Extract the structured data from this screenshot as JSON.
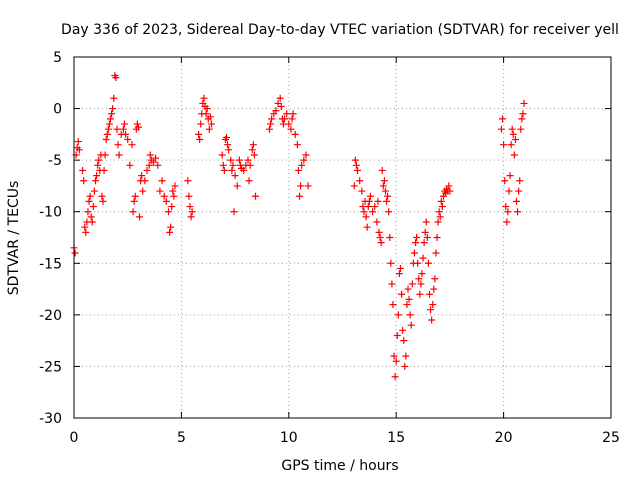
{
  "chart_data": {
    "type": "scatter",
    "title": "Day 336 of 2023, Sidereal Day-to-day VTEC variation (SDTVAR) for receiver yell",
    "xlabel": "GPS time / hours",
    "ylabel": "SDTVAR / TECUs",
    "xlim": [
      0,
      25
    ],
    "ylim": [
      -30,
      5
    ],
    "xticks": [
      0,
      5,
      10,
      15,
      20,
      25
    ],
    "yticks": [
      -30,
      -25,
      -20,
      -15,
      -10,
      -5,
      0,
      5
    ],
    "grid": true,
    "marker": "+",
    "color": "#ff0000",
    "series": [
      {
        "name": "SDTVAR",
        "points": [
          [
            0.0,
            -13.5
          ],
          [
            0.05,
            -14.0
          ],
          [
            0.1,
            -4.5
          ],
          [
            0.15,
            -3.8
          ],
          [
            0.2,
            -3.2
          ],
          [
            0.25,
            -4.0
          ],
          [
            0.4,
            -6.0
          ],
          [
            0.45,
            -7.0
          ],
          [
            0.5,
            -11.5
          ],
          [
            0.55,
            -12.0
          ],
          [
            0.6,
            -11.0
          ],
          [
            0.65,
            -10.0
          ],
          [
            0.7,
            -9.0
          ],
          [
            0.75,
            -8.5
          ],
          [
            0.8,
            -10.5
          ],
          [
            0.85,
            -11.0
          ],
          [
            0.9,
            -9.5
          ],
          [
            0.95,
            -8.0
          ],
          [
            1.0,
            -7.0
          ],
          [
            1.05,
            -6.5
          ],
          [
            1.1,
            -5.5
          ],
          [
            1.15,
            -5.0
          ],
          [
            1.2,
            -6.0
          ],
          [
            1.25,
            -4.5
          ],
          [
            1.3,
            -8.5
          ],
          [
            1.35,
            -9.0
          ],
          [
            1.4,
            -6.0
          ],
          [
            1.45,
            -4.5
          ],
          [
            1.5,
            -3.0
          ],
          [
            1.55,
            -2.5
          ],
          [
            1.6,
            -2.0
          ],
          [
            1.65,
            -1.5
          ],
          [
            1.7,
            -1.0
          ],
          [
            1.75,
            -0.5
          ],
          [
            1.8,
            0.0
          ],
          [
            1.85,
            1.0
          ],
          [
            1.9,
            3.2
          ],
          [
            1.95,
            3.0
          ],
          [
            2.0,
            -2.0
          ],
          [
            2.05,
            -3.5
          ],
          [
            2.1,
            -4.5
          ],
          [
            2.2,
            -2.5
          ],
          [
            2.3,
            -2.0
          ],
          [
            2.35,
            -1.5
          ],
          [
            2.4,
            -2.5
          ],
          [
            2.5,
            -3.0
          ],
          [
            2.6,
            -5.5
          ],
          [
            2.7,
            -3.5
          ],
          [
            2.75,
            -10.0
          ],
          [
            2.8,
            -9.0
          ],
          [
            2.85,
            -8.5
          ],
          [
            2.9,
            -2.0
          ],
          [
            2.95,
            -1.5
          ],
          [
            3.0,
            -1.8
          ],
          [
            3.05,
            -10.5
          ],
          [
            3.1,
            -7.0
          ],
          [
            3.15,
            -6.5
          ],
          [
            3.2,
            -8.0
          ],
          [
            3.3,
            -7.0
          ],
          [
            3.4,
            -6.0
          ],
          [
            3.5,
            -5.5
          ],
          [
            3.55,
            -4.5
          ],
          [
            3.6,
            -5.0
          ],
          [
            3.7,
            -5.2
          ],
          [
            3.8,
            -4.8
          ],
          [
            3.9,
            -5.5
          ],
          [
            4.0,
            -8.0
          ],
          [
            4.1,
            -7.0
          ],
          [
            4.2,
            -8.5
          ],
          [
            4.3,
            -9.0
          ],
          [
            4.4,
            -10.0
          ],
          [
            4.45,
            -12.0
          ],
          [
            4.5,
            -11.5
          ],
          [
            4.55,
            -9.5
          ],
          [
            4.6,
            -8.0
          ],
          [
            4.65,
            -8.5
          ],
          [
            4.7,
            -7.5
          ],
          [
            5.3,
            -7.0
          ],
          [
            5.35,
            -8.5
          ],
          [
            5.4,
            -9.5
          ],
          [
            5.45,
            -10.5
          ],
          [
            5.5,
            -10.0
          ],
          [
            5.8,
            -2.5
          ],
          [
            5.85,
            -3.0
          ],
          [
            5.9,
            -1.5
          ],
          [
            5.95,
            -0.5
          ],
          [
            6.0,
            0.5
          ],
          [
            6.05,
            1.0
          ],
          [
            6.1,
            0.2
          ],
          [
            6.15,
            -0.5
          ],
          [
            6.2,
            0.0
          ],
          [
            6.25,
            -1.0
          ],
          [
            6.3,
            -2.0
          ],
          [
            6.35,
            -0.8
          ],
          [
            6.4,
            -1.5
          ],
          [
            6.9,
            -4.5
          ],
          [
            6.95,
            -5.5
          ],
          [
            7.0,
            -6.0
          ],
          [
            7.05,
            -3.0
          ],
          [
            7.1,
            -2.8
          ],
          [
            7.15,
            -3.5
          ],
          [
            7.2,
            -4.0
          ],
          [
            7.3,
            -5.0
          ],
          [
            7.35,
            -6.0
          ],
          [
            7.4,
            -5.5
          ],
          [
            7.45,
            -10.0
          ],
          [
            7.5,
            -6.5
          ],
          [
            7.6,
            -7.5
          ],
          [
            7.7,
            -5.0
          ],
          [
            7.75,
            -5.5
          ],
          [
            7.8,
            -5.8
          ],
          [
            7.9,
            -6.0
          ],
          [
            8.0,
            -5.5
          ],
          [
            8.1,
            -5.0
          ],
          [
            8.15,
            -7.0
          ],
          [
            8.2,
            -5.5
          ],
          [
            8.3,
            -4.0
          ],
          [
            8.35,
            -3.5
          ],
          [
            8.4,
            -4.5
          ],
          [
            8.45,
            -8.5
          ],
          [
            9.1,
            -2.0
          ],
          [
            9.15,
            -1.5
          ],
          [
            9.2,
            -1.0
          ],
          [
            9.3,
            -0.5
          ],
          [
            9.4,
            -0.2
          ],
          [
            9.5,
            0.5
          ],
          [
            9.6,
            1.0
          ],
          [
            9.65,
            0.2
          ],
          [
            9.7,
            -1.0
          ],
          [
            9.75,
            -1.5
          ],
          [
            9.8,
            -1.0
          ],
          [
            9.9,
            -0.5
          ],
          [
            10.0,
            -1.5
          ],
          [
            10.1,
            -2.0
          ],
          [
            10.15,
            -1.0
          ],
          [
            10.2,
            -0.5
          ],
          [
            10.3,
            -2.5
          ],
          [
            10.4,
            -3.5
          ],
          [
            10.45,
            -6.0
          ],
          [
            10.5,
            -8.5
          ],
          [
            10.55,
            -7.5
          ],
          [
            10.6,
            -5.5
          ],
          [
            10.7,
            -5.0
          ],
          [
            10.8,
            -4.5
          ],
          [
            10.9,
            -7.5
          ],
          [
            13.05,
            -7.5
          ],
          [
            13.1,
            -5.0
          ],
          [
            13.15,
            -5.5
          ],
          [
            13.2,
            -6.0
          ],
          [
            13.3,
            -7.0
          ],
          [
            13.4,
            -8.0
          ],
          [
            13.45,
            -9.5
          ],
          [
            13.5,
            -10.0
          ],
          [
            13.55,
            -9.0
          ],
          [
            13.6,
            -10.5
          ],
          [
            13.65,
            -11.5
          ],
          [
            13.7,
            -9.5
          ],
          [
            13.75,
            -9.0
          ],
          [
            13.8,
            -8.5
          ],
          [
            13.9,
            -10.0
          ],
          [
            14.0,
            -9.5
          ],
          [
            14.1,
            -11.0
          ],
          [
            14.15,
            -9.0
          ],
          [
            14.2,
            -12.0
          ],
          [
            14.25,
            -12.5
          ],
          [
            14.3,
            -13.0
          ],
          [
            14.35,
            -6.0
          ],
          [
            14.4,
            -7.5
          ],
          [
            14.45,
            -7.0
          ],
          [
            14.5,
            -8.0
          ],
          [
            14.55,
            -9.0
          ],
          [
            14.6,
            -8.5
          ],
          [
            14.65,
            -10.0
          ],
          [
            14.7,
            -12.5
          ],
          [
            14.75,
            -15.0
          ],
          [
            14.8,
            -17.0
          ],
          [
            14.85,
            -19.0
          ],
          [
            14.9,
            -24.0
          ],
          [
            14.95,
            -26.0
          ],
          [
            15.0,
            -24.5
          ],
          [
            15.05,
            -22.0
          ],
          [
            15.1,
            -20.0
          ],
          [
            15.15,
            -16.0
          ],
          [
            15.2,
            -15.5
          ],
          [
            15.25,
            -18.0
          ],
          [
            15.3,
            -21.5
          ],
          [
            15.35,
            -22.5
          ],
          [
            15.4,
            -25.0
          ],
          [
            15.45,
            -24.0
          ],
          [
            15.5,
            -19.0
          ],
          [
            15.55,
            -17.5
          ],
          [
            15.6,
            -18.5
          ],
          [
            15.65,
            -20.0
          ],
          [
            15.7,
            -21.0
          ],
          [
            15.75,
            -17.0
          ],
          [
            15.8,
            -15.0
          ],
          [
            15.85,
            -14.0
          ],
          [
            15.9,
            -13.0
          ],
          [
            15.95,
            -12.5
          ],
          [
            16.0,
            -15.0
          ],
          [
            16.05,
            -16.5
          ],
          [
            16.1,
            -18.0
          ],
          [
            16.15,
            -17.0
          ],
          [
            16.2,
            -16.0
          ],
          [
            16.25,
            -14.5
          ],
          [
            16.3,
            -13.0
          ],
          [
            16.35,
            -12.0
          ],
          [
            16.4,
            -11.0
          ],
          [
            16.45,
            -12.5
          ],
          [
            16.5,
            -15.0
          ],
          [
            16.55,
            -18.0
          ],
          [
            16.6,
            -19.5
          ],
          [
            16.65,
            -20.5
          ],
          [
            16.7,
            -19.0
          ],
          [
            16.75,
            -17.5
          ],
          [
            16.8,
            -16.5
          ],
          [
            16.85,
            -14.0
          ],
          [
            16.9,
            -12.5
          ],
          [
            16.95,
            -11.0
          ],
          [
            17.0,
            -10.0
          ],
          [
            17.05,
            -10.5
          ],
          [
            17.1,
            -9.0
          ],
          [
            17.15,
            -9.5
          ],
          [
            17.2,
            -8.5
          ],
          [
            17.25,
            -8.0
          ],
          [
            17.3,
            -8.2
          ],
          [
            17.35,
            -7.8
          ],
          [
            17.4,
            -8.0
          ],
          [
            17.45,
            -7.5
          ],
          [
            17.5,
            -8.0
          ],
          [
            19.9,
            -2.0
          ],
          [
            19.95,
            -1.0
          ],
          [
            20.0,
            -3.5
          ],
          [
            20.05,
            -7.0
          ],
          [
            20.1,
            -9.5
          ],
          [
            20.15,
            -11.0
          ],
          [
            20.2,
            -10.0
          ],
          [
            20.25,
            -8.0
          ],
          [
            20.3,
            -6.5
          ],
          [
            20.35,
            -3.5
          ],
          [
            20.4,
            -2.0
          ],
          [
            20.45,
            -2.5
          ],
          [
            20.5,
            -4.5
          ],
          [
            20.55,
            -3.0
          ],
          [
            20.6,
            -9.0
          ],
          [
            20.65,
            -10.0
          ],
          [
            20.7,
            -8.0
          ],
          [
            20.75,
            -7.0
          ],
          [
            20.8,
            -2.0
          ],
          [
            20.85,
            -1.0
          ],
          [
            20.9,
            -0.5
          ],
          [
            20.95,
            0.5
          ]
        ]
      }
    ]
  }
}
